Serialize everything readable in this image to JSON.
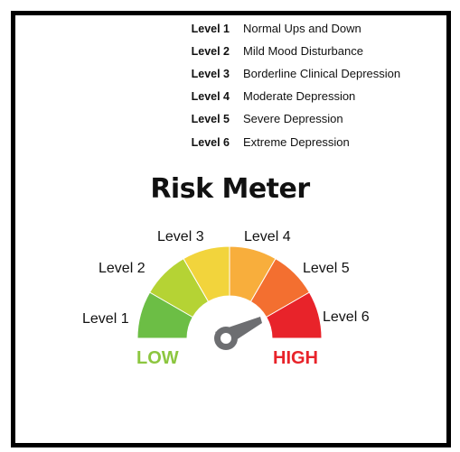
{
  "legend": [
    {
      "level": "Level 1",
      "desc": "Normal Ups and Down"
    },
    {
      "level": "Level 2",
      "desc": "Mild Mood Disturbance"
    },
    {
      "level": "Level 3",
      "desc": "Borderline Clinical Depression"
    },
    {
      "level": "Level 4",
      "desc": "Moderate Depression"
    },
    {
      "level": "Level 5",
      "desc": "Severe Depression"
    },
    {
      "level": "Level 6",
      "desc": "Extreme Depression"
    }
  ],
  "title": "Risk Meter",
  "gauge": {
    "labels": [
      "Level 1",
      "Level 2",
      "Level 3",
      "Level 4",
      "Level 5",
      "Level 6"
    ],
    "colors": [
      "#6cbe45",
      "#b5d334",
      "#f2d43c",
      "#f8ae3c",
      "#f36f30",
      "#e8232a"
    ],
    "low_label": "LOW",
    "high_label": "HIGH",
    "low_color": "#8cc63f",
    "high_color": "#e8232a",
    "needle_color": "#6d6e71"
  }
}
